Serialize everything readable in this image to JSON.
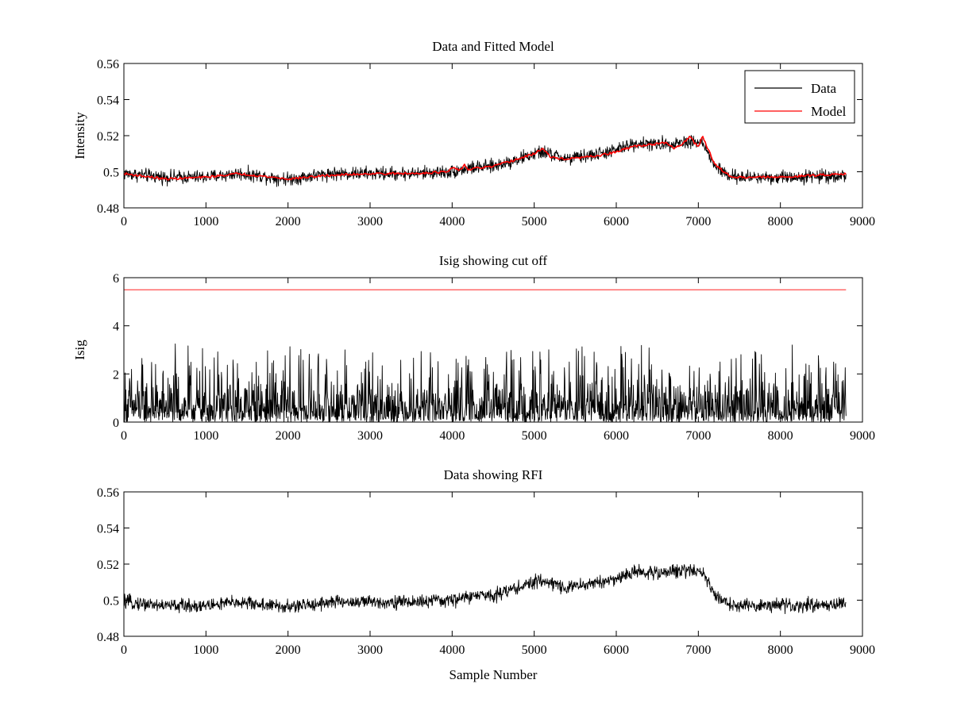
{
  "chart_data": [
    {
      "type": "line",
      "title": "Data and Fitted Model",
      "xlabel": "",
      "ylabel": "Intensity",
      "xlim": [
        0,
        9000
      ],
      "ylim": [
        0.48,
        0.56
      ],
      "xticks": [
        "0",
        "1000",
        "2000",
        "3000",
        "4000",
        "5000",
        "6000",
        "7000",
        "8000",
        "9000"
      ],
      "yticks": [
        "0.48",
        "0.5",
        "0.52",
        "0.54",
        "0.56"
      ],
      "legend_position": "top-right",
      "grid": false,
      "series": [
        {
          "name": "Data",
          "color": "#000000",
          "kind": "noisy",
          "noise_amplitude": 0.0055,
          "x": [
            0,
            500,
            1000,
            1400,
            2000,
            2500,
            3000,
            3500,
            4000,
            4200,
            4500,
            4800,
            5100,
            5400,
            5800,
            6000,
            6250,
            6500,
            6900,
            7050,
            7200,
            7400,
            8000,
            8800
          ],
          "y": [
            0.499,
            0.497,
            0.497,
            0.499,
            0.496,
            0.499,
            0.499,
            0.499,
            0.5,
            0.502,
            0.503,
            0.507,
            0.511,
            0.507,
            0.51,
            0.512,
            0.516,
            0.515,
            0.517,
            0.516,
            0.503,
            0.497,
            0.497,
            0.498
          ]
        },
        {
          "name": "Model",
          "color": "#ff0000",
          "kind": "smooth",
          "x": [
            0,
            500,
            1000,
            1400,
            2000,
            2500,
            3000,
            3500,
            3950,
            4000,
            4100,
            4150,
            4200,
            4300,
            4500,
            4800,
            5000,
            5100,
            5200,
            5400,
            5800,
            6000,
            6200,
            6400,
            6600,
            6700,
            6800,
            6900,
            6950,
            7000,
            7050,
            7200,
            7400,
            8000,
            8800
          ],
          "y": [
            0.499,
            0.496,
            0.497,
            0.499,
            0.496,
            0.498,
            0.499,
            0.499,
            0.5,
            0.502,
            0.501,
            0.504,
            0.501,
            0.502,
            0.503,
            0.507,
            0.51,
            0.513,
            0.508,
            0.507,
            0.509,
            0.511,
            0.514,
            0.515,
            0.516,
            0.513,
            0.515,
            0.52,
            0.516,
            0.514,
            0.52,
            0.504,
            0.497,
            0.497,
            0.499
          ]
        }
      ]
    },
    {
      "type": "line",
      "title": "Isig showing cut off",
      "xlabel": "",
      "ylabel": "Isig",
      "xlim": [
        0,
        9000
      ],
      "ylim": [
        0,
        6
      ],
      "xticks": [
        "0",
        "1000",
        "2000",
        "3000",
        "4000",
        "5000",
        "6000",
        "7000",
        "8000",
        "9000"
      ],
      "yticks": [
        "0",
        "2",
        "4",
        "6"
      ],
      "grid": false,
      "series": [
        {
          "color": "#000000",
          "kind": "abs-noise",
          "x": [
            0,
            8800
          ],
          "mean": 0.8,
          "max_peak": 3.6
        },
        {
          "color": "#ff0000",
          "kind": "flat",
          "x": [
            0,
            8800
          ],
          "y": [
            5.5,
            5.5
          ]
        }
      ]
    },
    {
      "type": "line",
      "title": "Data showing RFI",
      "xlabel": "Sample Number",
      "ylabel": "",
      "xlim": [
        0,
        9000
      ],
      "ylim": [
        0.48,
        0.56
      ],
      "xticks": [
        "0",
        "1000",
        "2000",
        "3000",
        "4000",
        "5000",
        "6000",
        "7000",
        "8000",
        "9000"
      ],
      "yticks": [
        "0.48",
        "0.5",
        "0.52",
        "0.54",
        "0.56"
      ],
      "grid": false,
      "series": [
        {
          "color": "#000000",
          "kind": "noisy",
          "noise_amplitude": 0.0055,
          "x": [
            0,
            500,
            1000,
            1400,
            2000,
            2500,
            3000,
            3500,
            4000,
            4200,
            4500,
            4800,
            5100,
            5400,
            5800,
            6000,
            6250,
            6500,
            6900,
            7050,
            7200,
            7400,
            8000,
            8800
          ],
          "y": [
            0.499,
            0.497,
            0.497,
            0.499,
            0.496,
            0.499,
            0.499,
            0.499,
            0.5,
            0.502,
            0.503,
            0.507,
            0.511,
            0.507,
            0.51,
            0.512,
            0.516,
            0.515,
            0.517,
            0.516,
            0.503,
            0.497,
            0.497,
            0.498
          ]
        }
      ]
    }
  ]
}
